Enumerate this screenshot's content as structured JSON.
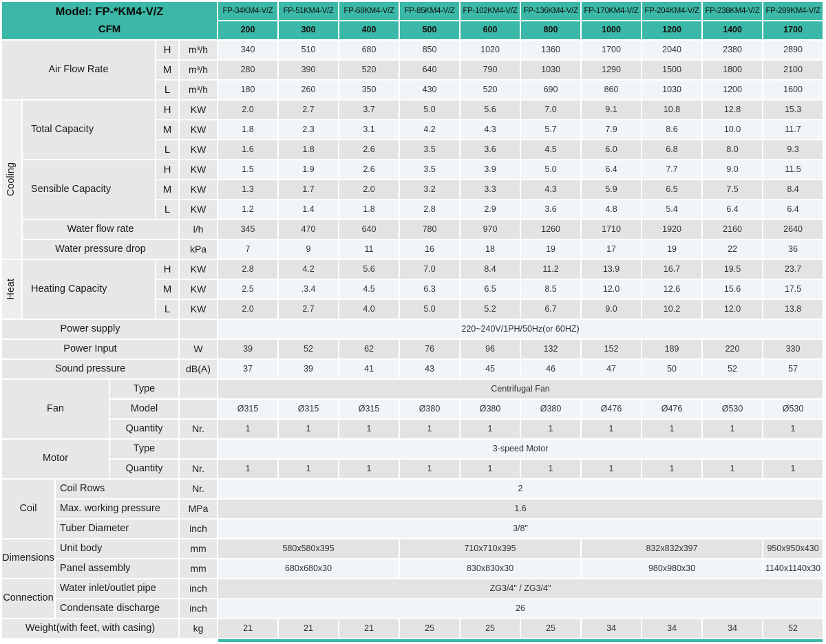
{
  "colors": {
    "teal": "#3bb8a7",
    "row_light": "#f2f5f7",
    "row_gray": "#e3e3e3",
    "label_bg": "#e7e7e7",
    "strip_bg": "#eeeeee"
  },
  "header": {
    "model_label": "Model: FP-*KM4-V/Z",
    "cfm_label": "CFM",
    "models": [
      "FP-34KM4-V/Z",
      "FP-51KM4-V/Z",
      "FP-68KM4-V/Z",
      "FP-85KM4-V/Z",
      "FP-102KM4-V/Z",
      "FP-136KM4-V/Z",
      "FP-170KM4-V/Z",
      "FP-204KM4-V/Z",
      "FP-238KM4-V/Z",
      "FP-289KM4-V/Z"
    ],
    "cfm": [
      "200",
      "300",
      "400",
      "500",
      "600",
      "800",
      "1000",
      "1200",
      "1400",
      "1700"
    ]
  },
  "rows": [
    {
      "left": [
        [
          "Air Flow Rate",
          4,
          3,
          "lab"
        ]
      ],
      "sub": "H",
      "unit": "m³/h",
      "values": [
        "340",
        "510",
        "680",
        "850",
        "1020",
        "1360",
        "1700",
        "2040",
        "2380",
        "2890"
      ]
    },
    {
      "sub": "M",
      "unit": "m³/h",
      "values": [
        "280",
        "390",
        "520",
        "640",
        "790",
        "1030",
        "1290",
        "1500",
        "1800",
        "2100"
      ]
    },
    {
      "sub": "L",
      "unit": "m³/h",
      "values": [
        "180",
        "260",
        "350",
        "430",
        "520",
        "690",
        "860",
        "1030",
        "1200",
        "1600"
      ]
    },
    {
      "left": [
        [
          "Cooling",
          1,
          8,
          "strip"
        ],
        [
          "Total Capacity",
          3,
          3,
          "labL"
        ]
      ],
      "sub": "H",
      "unit": "KW",
      "values": [
        "2.0",
        "2.7",
        "3.7",
        "5.0",
        "5.6",
        "7.0",
        "9.1",
        "10.8",
        "12.8",
        "15.3"
      ]
    },
    {
      "sub": "M",
      "unit": "KW",
      "values": [
        "1.8",
        "2.3",
        "3.1",
        "4.2",
        "4.3",
        "5.7",
        "7.9",
        "8.6",
        "10.0",
        "11.7"
      ]
    },
    {
      "sub": "L",
      "unit": "KW",
      "values": [
        "1.6",
        "1.8",
        "2.6",
        "3.5",
        "3.6",
        "4.5",
        "6.0",
        "6.8",
        "8.0",
        "9.3"
      ]
    },
    {
      "left": [
        [
          "Sensible Capacity",
          3,
          3,
          "labL"
        ]
      ],
      "sub": "H",
      "unit": "KW",
      "values": [
        "1.5",
        "1.9",
        "2.6",
        "3.5",
        "3.9",
        "5.0",
        "6.4",
        "7.7",
        "9.0",
        "11.5"
      ]
    },
    {
      "sub": "M",
      "unit": "KW",
      "values": [
        "1.3",
        "1.7",
        "2.0",
        "3.2",
        "3.3",
        "4.3",
        "5.9",
        "6.5",
        "7.5",
        "8.4"
      ]
    },
    {
      "sub": "L",
      "unit": "KW",
      "values": [
        "1.2",
        "1.4",
        "1.8",
        "2.8",
        "2.9",
        "3.6",
        "4.8",
        "5.4",
        "6.4",
        "6.4"
      ]
    },
    {
      "left": [
        [
          "Water flow rate",
          4,
          1,
          "lab"
        ]
      ],
      "unit": "l/h",
      "values": [
        "345",
        "470",
        "640",
        "780",
        "970",
        "1260",
        "1710",
        "1920",
        "2160",
        "2640"
      ]
    },
    {
      "left": [
        [
          "Water pressure drop",
          4,
          1,
          "lab"
        ]
      ],
      "unit": "kPa",
      "values": [
        "7",
        "9",
        "11",
        "16",
        "18",
        "19",
        "17",
        "19",
        "22",
        "36"
      ]
    },
    {
      "left": [
        [
          "Heat",
          1,
          3,
          "strip"
        ],
        [
          "Heating Capacity",
          3,
          3,
          "labL"
        ]
      ],
      "sub": "H",
      "unit": "KW",
      "values": [
        "2.8",
        "4.2",
        "5.6",
        "7.0",
        "8.4",
        "11.2",
        "13.9",
        "16.7",
        "19.5",
        "23.7"
      ]
    },
    {
      "sub": "M",
      "unit": "KW",
      "values": [
        "2.5",
        ".3.4",
        "4.5",
        "6.3",
        "6.5",
        "8.5",
        "12.0",
        "12.6",
        "15.6",
        "17.5"
      ]
    },
    {
      "sub": "L",
      "unit": "KW",
      "values": [
        "2.0",
        "2.7",
        "4.0",
        "5.0",
        "5.2",
        "6.7",
        "9.0",
        "10.2",
        "12.0",
        "13.8"
      ]
    },
    {
      "left": [
        [
          "Power supply",
          5,
          1,
          "lab"
        ]
      ],
      "unit": "",
      "merged": [
        [
          "220~240V/1PH/50Hz(or 60HZ)",
          10
        ]
      ]
    },
    {
      "left": [
        [
          "Power Input",
          5,
          1,
          "lab"
        ]
      ],
      "unit": "W",
      "values": [
        "39",
        "52",
        "62",
        "76",
        "96",
        "132",
        "152",
        "189",
        "220",
        "330"
      ]
    },
    {
      "left": [
        [
          "Sound pressure",
          5,
          1,
          "lab"
        ]
      ],
      "unit": "dB(A)",
      "values": [
        "37",
        "39",
        "41",
        "43",
        "45",
        "46",
        "47",
        "50",
        "52",
        "57"
      ]
    },
    {
      "left": [
        [
          "Fan",
          3,
          3,
          "lab"
        ],
        [
          "Type",
          2,
          1,
          "propC"
        ]
      ],
      "unit": "",
      "merged": [
        [
          "Centrifugal Fan",
          10
        ]
      ]
    },
    {
      "left": [
        [
          "Model",
          2,
          1,
          "propC"
        ]
      ],
      "unit": "",
      "values": [
        "Ø315",
        "Ø315",
        "Ø315",
        "Ø380",
        "Ø380",
        "Ø380",
        "Ø476",
        "Ø476",
        "Ø530",
        "Ø530"
      ]
    },
    {
      "left": [
        [
          "Quantity",
          2,
          1,
          "propC"
        ]
      ],
      "unit": "Nr.",
      "values": [
        "1",
        "1",
        "1",
        "1",
        "1",
        "1",
        "1",
        "1",
        "1",
        "1"
      ]
    },
    {
      "left": [
        [
          "Motor",
          3,
          2,
          "lab"
        ],
        [
          "Type",
          2,
          1,
          "propC"
        ]
      ],
      "unit": "",
      "merged": [
        [
          "3-speed Motor",
          10
        ]
      ]
    },
    {
      "left": [
        [
          "Quantity",
          2,
          1,
          "propC"
        ]
      ],
      "unit": "Nr.",
      "values": [
        "1",
        "1",
        "1",
        "1",
        "1",
        "1",
        "1",
        "1",
        "1",
        "1"
      ]
    },
    {
      "left": [
        [
          "Coil",
          2,
          3,
          "lab"
        ],
        [
          "Coil Rows",
          3,
          1,
          "prop"
        ]
      ],
      "unit": "Nr.",
      "merged": [
        [
          "2",
          10
        ]
      ]
    },
    {
      "left": [
        [
          "Max. working pressure",
          3,
          1,
          "prop"
        ]
      ],
      "unit": "MPa",
      "merged": [
        [
          "1.6",
          10
        ]
      ]
    },
    {
      "left": [
        [
          "Tuber Diameter",
          3,
          1,
          "prop"
        ]
      ],
      "unit": "inch",
      "merged": [
        [
          "3/8\"",
          10
        ]
      ]
    },
    {
      "left": [
        [
          "Dimensions",
          2,
          2,
          "lab"
        ],
        [
          "Unit body",
          3,
          1,
          "prop"
        ]
      ],
      "unit": "mm",
      "merged": [
        [
          "580x580x395",
          3
        ],
        [
          "710x710x395",
          3
        ],
        [
          "832x832x397",
          3
        ],
        [
          "950x950x430",
          1
        ]
      ]
    },
    {
      "left": [
        [
          "Panel assembly",
          3,
          1,
          "prop"
        ]
      ],
      "unit": "mm",
      "merged": [
        [
          "680x680x30",
          3
        ],
        [
          "830x830x30",
          3
        ],
        [
          "980x980x30",
          3
        ],
        [
          "1140x1140x30",
          1
        ]
      ]
    },
    {
      "left": [
        [
          "Connection",
          2,
          2,
          "lab"
        ],
        [
          "Water inlet/outlet pipe",
          3,
          1,
          "prop"
        ]
      ],
      "unit": "inch",
      "merged": [
        [
          "ZG3/4\" / ZG3/4\"",
          10
        ]
      ]
    },
    {
      "left": [
        [
          "Condensate discharge",
          3,
          1,
          "prop"
        ]
      ],
      "unit": "inch",
      "merged": [
        [
          "26",
          10
        ]
      ]
    },
    {
      "left": [
        [
          "Weight(with feet, with casing)",
          5,
          1,
          "lab"
        ]
      ],
      "unit": "kg",
      "values": [
        "21",
        "21",
        "21",
        "25",
        "25",
        "25",
        "34",
        "34",
        "34",
        "52"
      ]
    }
  ]
}
